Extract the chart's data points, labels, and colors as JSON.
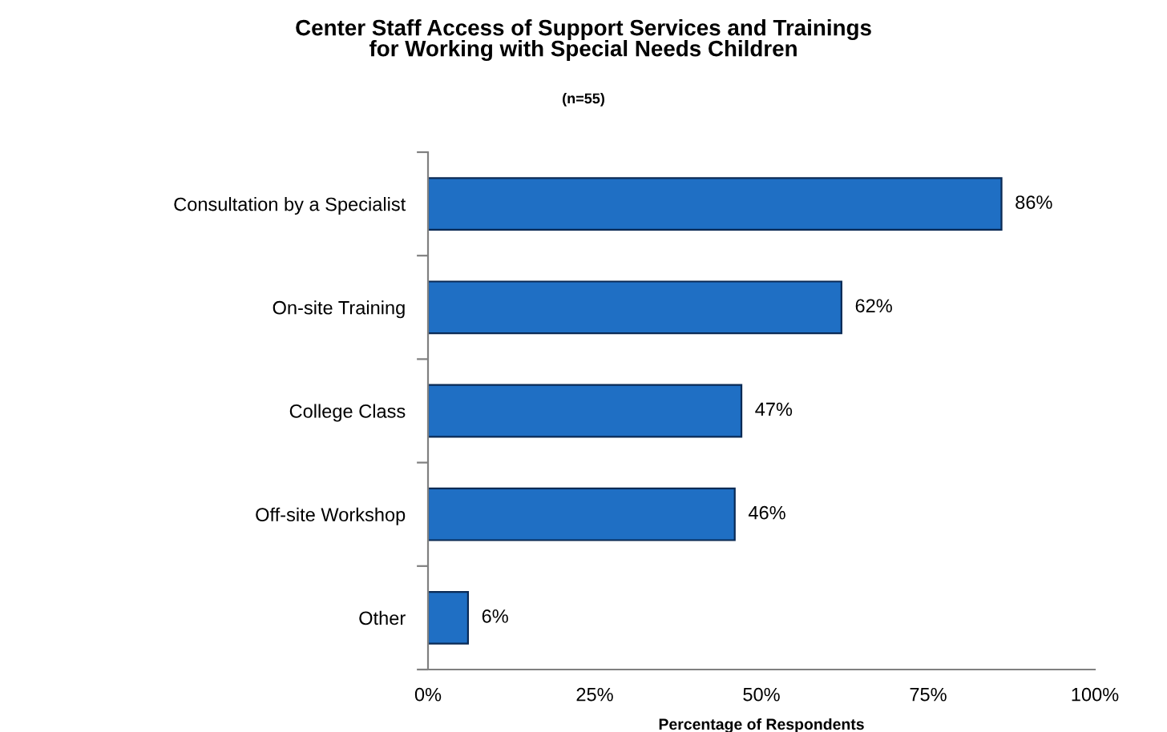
{
  "chart_data": {
    "type": "bar",
    "orientation": "horizontal",
    "title": "Center Staff Access of Support Services and Trainings\nfor Working with Special Needs Children",
    "subtitle": "(n=55)",
    "xlabel": "Percentage of Respondents",
    "categories": [
      "Consultation by a Specialist",
      "On-site Training",
      "College Class",
      "Off-site Workshop",
      "Other"
    ],
    "values": [
      86,
      62,
      47,
      46,
      6
    ],
    "value_labels": [
      "86%",
      "62%",
      "47%",
      "46%",
      "6%"
    ],
    "color": "#1f6fc4",
    "xlim": [
      0,
      100
    ],
    "xticks": [
      {
        "value": 0,
        "label": "0%"
      },
      {
        "value": 25,
        "label": "25%"
      },
      {
        "value": 50,
        "label": "50%"
      },
      {
        "value": 75,
        "label": "75%"
      },
      {
        "value": 100,
        "label": "100%"
      }
    ],
    "grid": false,
    "legend": false
  }
}
